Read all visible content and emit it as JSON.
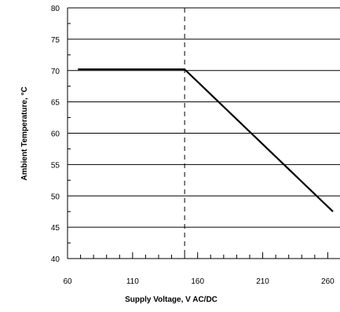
{
  "chart_data": {
    "type": "line",
    "title": "",
    "xlabel": "Supply Voltage, V AC/DC",
    "ylabel": "Ambient Temperature, °C",
    "xlim": [
      60,
      260
    ],
    "ylim": [
      40,
      80
    ],
    "x_ticks": [
      60,
      110,
      160,
      210,
      260
    ],
    "x_tick_labels": [
      "60",
      "110",
      "160",
      "210",
      "260"
    ],
    "y_ticks": [
      40,
      45,
      50,
      55,
      60,
      65,
      70,
      75,
      80
    ],
    "y_tick_labels": [
      "40",
      "45",
      "50",
      "55",
      "60",
      "65",
      "70",
      "75",
      "80"
    ],
    "grid": "horizontal",
    "reference_line": {
      "x": 150,
      "style": "dashed"
    },
    "series": [
      {
        "x": [
          68,
          150,
          264
        ],
        "y": [
          70.2,
          70.2,
          47.5
        ]
      }
    ]
  }
}
